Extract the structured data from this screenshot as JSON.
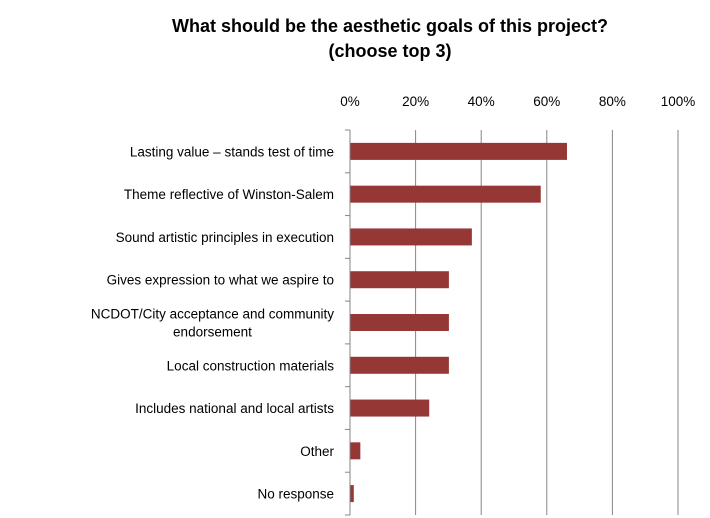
{
  "chart_data": {
    "type": "bar",
    "orientation": "horizontal",
    "title": [
      "What should be the aesthetic goals of this project?",
      "(choose top 3)"
    ],
    "xlabel": "",
    "ylabel": "",
    "xlim": [
      0,
      100
    ],
    "x_axis_position": "top",
    "x_ticks": [
      "0%",
      "20%",
      "40%",
      "60%",
      "80%",
      "100%"
    ],
    "grid": true,
    "legend": "none",
    "bar_color": "#953735",
    "categories": [
      [
        "Lasting value – stands test of time"
      ],
      [
        "Theme reflective of Winston-Salem"
      ],
      [
        "Sound artistic principles in execution"
      ],
      [
        "Gives expression to what we aspire to"
      ],
      [
        "NCDOT/City acceptance and community",
        "endorsement"
      ],
      [
        "Local construction materials"
      ],
      [
        "Includes national and local artists"
      ],
      [
        "Other"
      ],
      [
        "No response"
      ]
    ],
    "values": [
      66,
      58,
      37,
      30,
      30,
      30,
      24,
      3,
      1
    ]
  }
}
